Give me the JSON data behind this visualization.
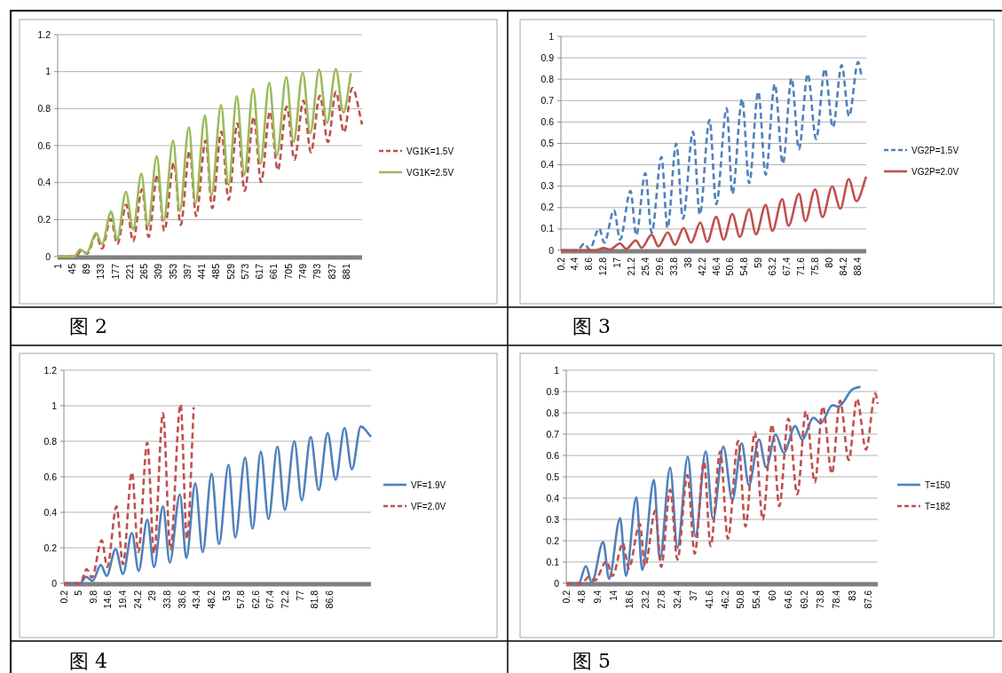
{
  "chart_data": [
    {
      "type": "line",
      "xlim": [
        1,
        929
      ],
      "xticks": [
        1,
        45,
        89,
        133,
        177,
        221,
        265,
        309,
        353,
        397,
        441,
        485,
        529,
        573,
        617,
        661,
        705,
        749,
        793,
        837,
        881
      ],
      "ylim": [
        0,
        1.2
      ],
      "yticks": [
        0,
        0.2,
        0.4,
        0.6,
        0.8,
        1,
        1.2
      ],
      "grid": "y",
      "legend": "right",
      "annotations": [
        "图 2"
      ],
      "series": [
        {
          "name": "VG1K=1.5V",
          "color": "#c0504d",
          "line_style": "dashed",
          "x": [
            1,
            55,
            73,
            91,
            118,
            136,
            163,
            183,
            210,
            231,
            258,
            278,
            305,
            326,
            355,
            376,
            403,
            423,
            452,
            472,
            500,
            522,
            549,
            571,
            599,
            621,
            648,
            672,
            699,
            723,
            750,
            773,
            800,
            825,
            849,
            874,
            899,
            929
          ],
          "values": [
            0,
            0,
            0.032,
            0.016,
            0.118,
            0.043,
            0.203,
            0.067,
            0.28,
            0.083,
            0.363,
            0.107,
            0.443,
            0.139,
            0.507,
            0.171,
            0.571,
            0.219,
            0.627,
            0.262,
            0.675,
            0.307,
            0.72,
            0.355,
            0.755,
            0.403,
            0.784,
            0.467,
            0.811,
            0.523,
            0.843,
            0.563,
            0.87,
            0.619,
            0.891,
            0.672,
            0.912,
            0.715
          ]
        },
        {
          "name": "VG1K=2.5V",
          "color": "#9bbb59",
          "line_style": "solid",
          "x": [
            1,
            51,
            69,
            89,
            118,
            136,
            164,
            182,
            209,
            231,
            256,
            276,
            303,
            324,
            353,
            373,
            401,
            421,
            450,
            470,
            499,
            522,
            547,
            570,
            597,
            619,
            646,
            669,
            698,
            720,
            748,
            771,
            798,
            822,
            849,
            872,
            895
          ],
          "values": [
            0,
            0,
            0.038,
            0.019,
            0.128,
            0.067,
            0.243,
            0.091,
            0.35,
            0.147,
            0.448,
            0.163,
            0.542,
            0.195,
            0.627,
            0.246,
            0.699,
            0.288,
            0.763,
            0.331,
            0.819,
            0.387,
            0.867,
            0.443,
            0.907,
            0.502,
            0.939,
            0.547,
            0.971,
            0.619,
            0.995,
            0.667,
            1.011,
            0.723,
            1.014,
            0.779,
            0.992
          ]
        }
      ]
    },
    {
      "type": "line",
      "xlim": [
        0.2,
        91
      ],
      "xticks": [
        0.2,
        4.4,
        8.6,
        12.8,
        17,
        21.2,
        25.4,
        29.6,
        33.8,
        38,
        42.2,
        46.4,
        50.6,
        54.8,
        59,
        63.2,
        67.4,
        71.6,
        75.8,
        80,
        84.2,
        88.4
      ],
      "ylim": [
        0,
        1
      ],
      "yticks": [
        0,
        0.1,
        0.2,
        0.3,
        0.4,
        0.5,
        0.6,
        0.7,
        0.8,
        0.9,
        1
      ],
      "grid": "y",
      "legend": "right",
      "annotations": [
        "图 3"
      ],
      "series": [
        {
          "name": "VG2P=1.5V",
          "color": "#4f81bd",
          "line_style": "dashed",
          "x": [
            0.2,
            5,
            7.2,
            8.7,
            11.6,
            13.1,
            16,
            17.8,
            20.9,
            22.6,
            25.3,
            27.2,
            30.1,
            31.9,
            34.5,
            36.5,
            39.5,
            41.5,
            44.4,
            46.4,
            49.5,
            51.2,
            54.1,
            56.2,
            58.9,
            61.1,
            63.8,
            66.2,
            68.8,
            71,
            73.6,
            76.1,
            78.7,
            81.1,
            83.7,
            85.9,
            88.6,
            89.6
          ],
          "values": [
            0,
            0,
            0.032,
            0.004,
            0.102,
            0.036,
            0.188,
            0.05,
            0.278,
            0.071,
            0.361,
            0.082,
            0.437,
            0.105,
            0.499,
            0.147,
            0.555,
            0.167,
            0.61,
            0.216,
            0.665,
            0.264,
            0.707,
            0.313,
            0.741,
            0.354,
            0.776,
            0.405,
            0.804,
            0.472,
            0.824,
            0.52,
            0.848,
            0.575,
            0.866,
            0.627,
            0.88,
            0.817
          ]
        },
        {
          "name": "VG2P=2.0V",
          "color": "#c0504d",
          "line_style": "solid",
          "x": [
            0.2,
            10.3,
            13,
            14.7,
            17.8,
            19.6,
            22.5,
            24.2,
            27.2,
            29.2,
            32,
            34.1,
            36.7,
            38.9,
            41.7,
            43.7,
            46.4,
            48.6,
            51.2,
            53.4,
            56.2,
            58.2,
            61.1,
            63.1,
            66,
            67.9,
            71,
            72.9,
            75.8,
            78,
            80.9,
            83.3,
            85.8,
            88.1,
            91
          ],
          "values": [
            0,
            0,
            0.011,
            0.004,
            0.032,
            0.007,
            0.046,
            0.012,
            0.073,
            0.019,
            0.084,
            0.026,
            0.105,
            0.036,
            0.13,
            0.04,
            0.156,
            0.05,
            0.17,
            0.064,
            0.192,
            0.075,
            0.212,
            0.091,
            0.239,
            0.115,
            0.264,
            0.137,
            0.285,
            0.156,
            0.299,
            0.195,
            0.333,
            0.23,
            0.344
          ]
        }
      ]
    },
    {
      "type": "line",
      "xlim": [
        0.2,
        100
      ],
      "xticks": [
        0.2,
        5,
        9.8,
        14.6,
        19.4,
        24.2,
        29,
        33.8,
        38.6,
        43.4,
        48.2,
        53,
        57.8,
        62.6,
        67.4,
        72.2,
        77,
        81.8,
        86.6
      ],
      "ylim": [
        0,
        1.2
      ],
      "yticks": [
        0,
        0.2,
        0.4,
        0.6,
        0.8,
        1,
        1.2
      ],
      "grid": "y",
      "legend": "right",
      "annotations": [
        "图 4"
      ],
      "series": [
        {
          "name": "VF=1.9V",
          "color": "#4f81bd",
          "line_style": "solid",
          "x": [
            0.2,
            5.5,
            7.4,
            9.5,
            12.2,
            14.1,
            17,
            19.4,
            22.3,
            24.5,
            27.3,
            29.5,
            32.4,
            34.6,
            37.9,
            40,
            42.9,
            45.3,
            48.2,
            50.6,
            53.7,
            55.9,
            59.1,
            61.5,
            64.2,
            66.7,
            69.6,
            72,
            75.1,
            77.5,
            80.4,
            83,
            85.9,
            88.5,
            91.4,
            93.8,
            96.7,
            100
          ],
          "values": [
            0,
            0,
            0.037,
            0.013,
            0.103,
            0.042,
            0.192,
            0.053,
            0.283,
            0.07,
            0.358,
            0.092,
            0.433,
            0.117,
            0.5,
            0.142,
            0.563,
            0.175,
            0.617,
            0.22,
            0.667,
            0.258,
            0.708,
            0.308,
            0.742,
            0.362,
            0.77,
            0.413,
            0.8,
            0.467,
            0.825,
            0.525,
            0.847,
            0.583,
            0.875,
            0.642,
            0.883,
            0.825
          ]
        },
        {
          "name": "VF=2.0V",
          "color": "#c0504d",
          "line_style": "dashed",
          "x": [
            0.2,
            5.5,
            7.6,
            9.3,
            12.5,
            14.3,
            17.3,
            19.4,
            22.3,
            24.4,
            27.3,
            29.5,
            32.4,
            34.8,
            38.1,
            40.2,
            42.4
          ],
          "values": [
            0,
            0,
            0.08,
            0.033,
            0.242,
            0.092,
            0.433,
            0.108,
            0.625,
            0.175,
            0.792,
            0.17,
            0.958,
            0.192,
            1.008,
            0.25,
            0.992
          ]
        }
      ]
    },
    {
      "type": "line",
      "xlim": [
        0.2,
        90.4
      ],
      "xticks": [
        0.2,
        4.8,
        9.4,
        14,
        18.6,
        23.2,
        27.8,
        32.4,
        37,
        41.6,
        46.2,
        50.8,
        55.4,
        60,
        64.6,
        69.2,
        73.8,
        78.4,
        83,
        87.6
      ],
      "ylim": [
        0,
        1
      ],
      "yticks": [
        0,
        0.1,
        0.2,
        0.3,
        0.4,
        0.5,
        0.6,
        0.7,
        0.8,
        0.9,
        1
      ],
      "grid": "y",
      "legend": "right",
      "annotations": [
        "图 5"
      ],
      "series": [
        {
          "name": "T=150",
          "color": "#4f81bd",
          "line_style": "solid",
          "x": [
            0.2,
            3.8,
            5.9,
            7.6,
            10.9,
            12.6,
            15.8,
            17.5,
            20.5,
            22.2,
            25.6,
            27.3,
            30.3,
            32.4,
            35.4,
            37.6,
            40.6,
            42.7,
            45.7,
            48.3,
            51,
            53.1,
            56,
            58.1,
            60.8,
            63.2,
            66.5,
            68.5,
            71.8,
            73.9,
            77.3,
            79,
            82.9,
            85.4
          ],
          "values": [
            0,
            0,
            0.081,
            0.003,
            0.195,
            0.021,
            0.306,
            0.035,
            0.404,
            0.063,
            0.485,
            0.111,
            0.543,
            0.167,
            0.595,
            0.22,
            0.62,
            0.3,
            0.641,
            0.39,
            0.657,
            0.46,
            0.675,
            0.543,
            0.699,
            0.613,
            0.738,
            0.675,
            0.777,
            0.752,
            0.836,
            0.829,
            0.908,
            0.923
          ]
        },
        {
          "name": "T=182",
          "color": "#c0504d",
          "line_style": "dashed",
          "x": [
            0.2,
            4.7,
            6.8,
            8.5,
            11.9,
            13.6,
            16.6,
            18.3,
            21.5,
            23,
            26,
            27.7,
            30.3,
            32.4,
            35.3,
            37.4,
            40.1,
            42,
            44.8,
            47,
            50,
            52.1,
            54.8,
            57.1,
            59.8,
            61.9,
            64.5,
            67.1,
            69.6,
            72.2,
            74.5,
            77.1,
            79.5,
            82,
            84.4,
            87,
            89.7,
            90.4
          ],
          "values": [
            0,
            0,
            0.031,
            0.014,
            0.104,
            0.035,
            0.188,
            0.07,
            0.279,
            0.081,
            0.341,
            0.077,
            0.439,
            0.111,
            0.508,
            0.139,
            0.571,
            0.174,
            0.62,
            0.209,
            0.669,
            0.267,
            0.708,
            0.299,
            0.745,
            0.362,
            0.773,
            0.418,
            0.808,
            0.474,
            0.829,
            0.515,
            0.857,
            0.578,
            0.866,
            0.627,
            0.891,
            0.843
          ]
        }
      ]
    }
  ]
}
